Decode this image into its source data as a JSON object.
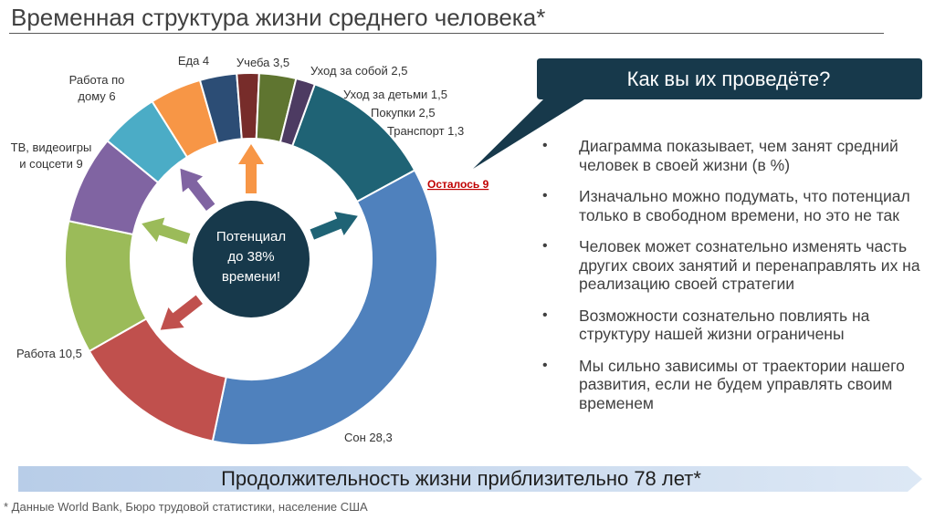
{
  "title": "Временная структура жизни среднего человека*",
  "callout": {
    "text": "Как вы их проведёте?",
    "bg": "#17394b"
  },
  "bullets": [
    "Диаграмма показывает, чем занят средний человек в своей жизни (в %)",
    "Изначально можно подумать, что потенциал только в свободном времени, но это не так",
    "Человек может сознательно изменять часть других своих занятий и перенаправлять их на реализацию своей стратегии",
    "Возможности сознательно повлиять на структуру нашей жизни ограничены",
    "Мы сильно зависимы от траектории нашего развития, если не будем управлять своим временем"
  ],
  "banner": "Продолжительность жизни приблизительно 78 лет*",
  "footnote": "* Данные World Bank, Бюро трудовой статистики, население США",
  "chart_data": {
    "type": "pie",
    "style": "donut",
    "center_label": [
      "Потенциал",
      "до 38%",
      "времени!"
    ],
    "slices": [
      {
        "label": "Осталось 9",
        "value": 9,
        "color": "#1f6375"
      },
      {
        "label": "Сон 28,3",
        "value": 28.3,
        "color": "#4f81bd"
      },
      {
        "label": "Работа 10,5",
        "value": 10.5,
        "color": "#c0504d"
      },
      {
        "label": "ТВ, видеоигры и соцсети 9",
        "value": 9,
        "color": "#9bbb59"
      },
      {
        "label": "Работа по дому 6",
        "value": 6,
        "color": "#8064a2"
      },
      {
        "label": "Еда 4",
        "value": 4,
        "color": "#4bacc6"
      },
      {
        "label": "Учеба 3,5",
        "value": 3.5,
        "color": "#f79646"
      },
      {
        "label": "Уход за собой 2,5",
        "value": 2.5,
        "color": "#2c4d75"
      },
      {
        "label": "Уход за детьми 1,5",
        "value": 1.5,
        "color": "#772c2a"
      },
      {
        "label": "Покупки 2,5",
        "value": 2.5,
        "color": "#5f7530"
      },
      {
        "label": "Транспорт 1,3",
        "value": 1.3,
        "color": "#4d3b62"
      }
    ],
    "highlight_color": "#c00000",
    "center_color": "#17394b"
  }
}
